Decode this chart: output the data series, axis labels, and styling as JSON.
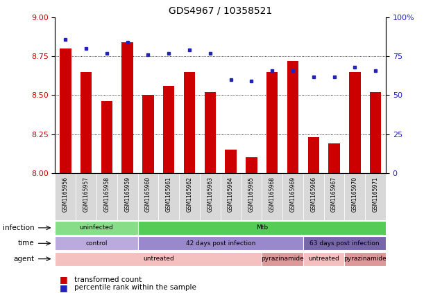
{
  "title": "GDS4967 / 10358521",
  "samples": [
    "GSM1165956",
    "GSM1165957",
    "GSM1165958",
    "GSM1165959",
    "GSM1165960",
    "GSM1165961",
    "GSM1165962",
    "GSM1165963",
    "GSM1165964",
    "GSM1165965",
    "GSM1165968",
    "GSM1165969",
    "GSM1165966",
    "GSM1165967",
    "GSM1165970",
    "GSM1165971"
  ],
  "bar_values": [
    8.8,
    8.65,
    8.46,
    8.84,
    8.5,
    8.56,
    8.65,
    8.52,
    8.15,
    8.1,
    8.65,
    8.72,
    8.23,
    8.19,
    8.65,
    8.52
  ],
  "dot_values": [
    86,
    80,
    77,
    84,
    76,
    77,
    79,
    77,
    60,
    59,
    66,
    66,
    62,
    62,
    68,
    66
  ],
  "ylim_left": [
    8.0,
    9.0
  ],
  "ylim_right": [
    0,
    100
  ],
  "yticks_left": [
    8.0,
    8.25,
    8.5,
    8.75,
    9.0
  ],
  "yticks_right": [
    0,
    25,
    50,
    75,
    100
  ],
  "bar_color": "#cc0000",
  "dot_color": "#2222bb",
  "bar_bottom": 8.0,
  "grid_lines": [
    8.25,
    8.5,
    8.75
  ],
  "annotation_rows": [
    {
      "label": "infection",
      "groups": [
        {
          "text": "uninfected",
          "start": 0,
          "end": 4,
          "color": "#88dd88"
        },
        {
          "text": "Mtb",
          "start": 4,
          "end": 16,
          "color": "#55cc55"
        }
      ]
    },
    {
      "label": "time",
      "groups": [
        {
          "text": "control",
          "start": 0,
          "end": 4,
          "color": "#bbaadd"
        },
        {
          "text": "42 days post infection",
          "start": 4,
          "end": 12,
          "color": "#9988cc"
        },
        {
          "text": "63 days post infection",
          "start": 12,
          "end": 16,
          "color": "#7766aa"
        }
      ]
    },
    {
      "label": "agent",
      "groups": [
        {
          "text": "untreated",
          "start": 0,
          "end": 10,
          "color": "#f5c0c0"
        },
        {
          "text": "pyrazinamide",
          "start": 10,
          "end": 12,
          "color": "#dd9999"
        },
        {
          "text": "untreated",
          "start": 12,
          "end": 14,
          "color": "#f5c0c0"
        },
        {
          "text": "pyrazinamide",
          "start": 14,
          "end": 16,
          "color": "#dd9999"
        }
      ]
    }
  ],
  "legend_items": [
    {
      "label": "transformed count",
      "color": "#cc0000"
    },
    {
      "label": "percentile rank within the sample",
      "color": "#2222bb"
    }
  ],
  "tick_bg_color": "#d8d8d8",
  "fig_bg_color": "#ffffff"
}
